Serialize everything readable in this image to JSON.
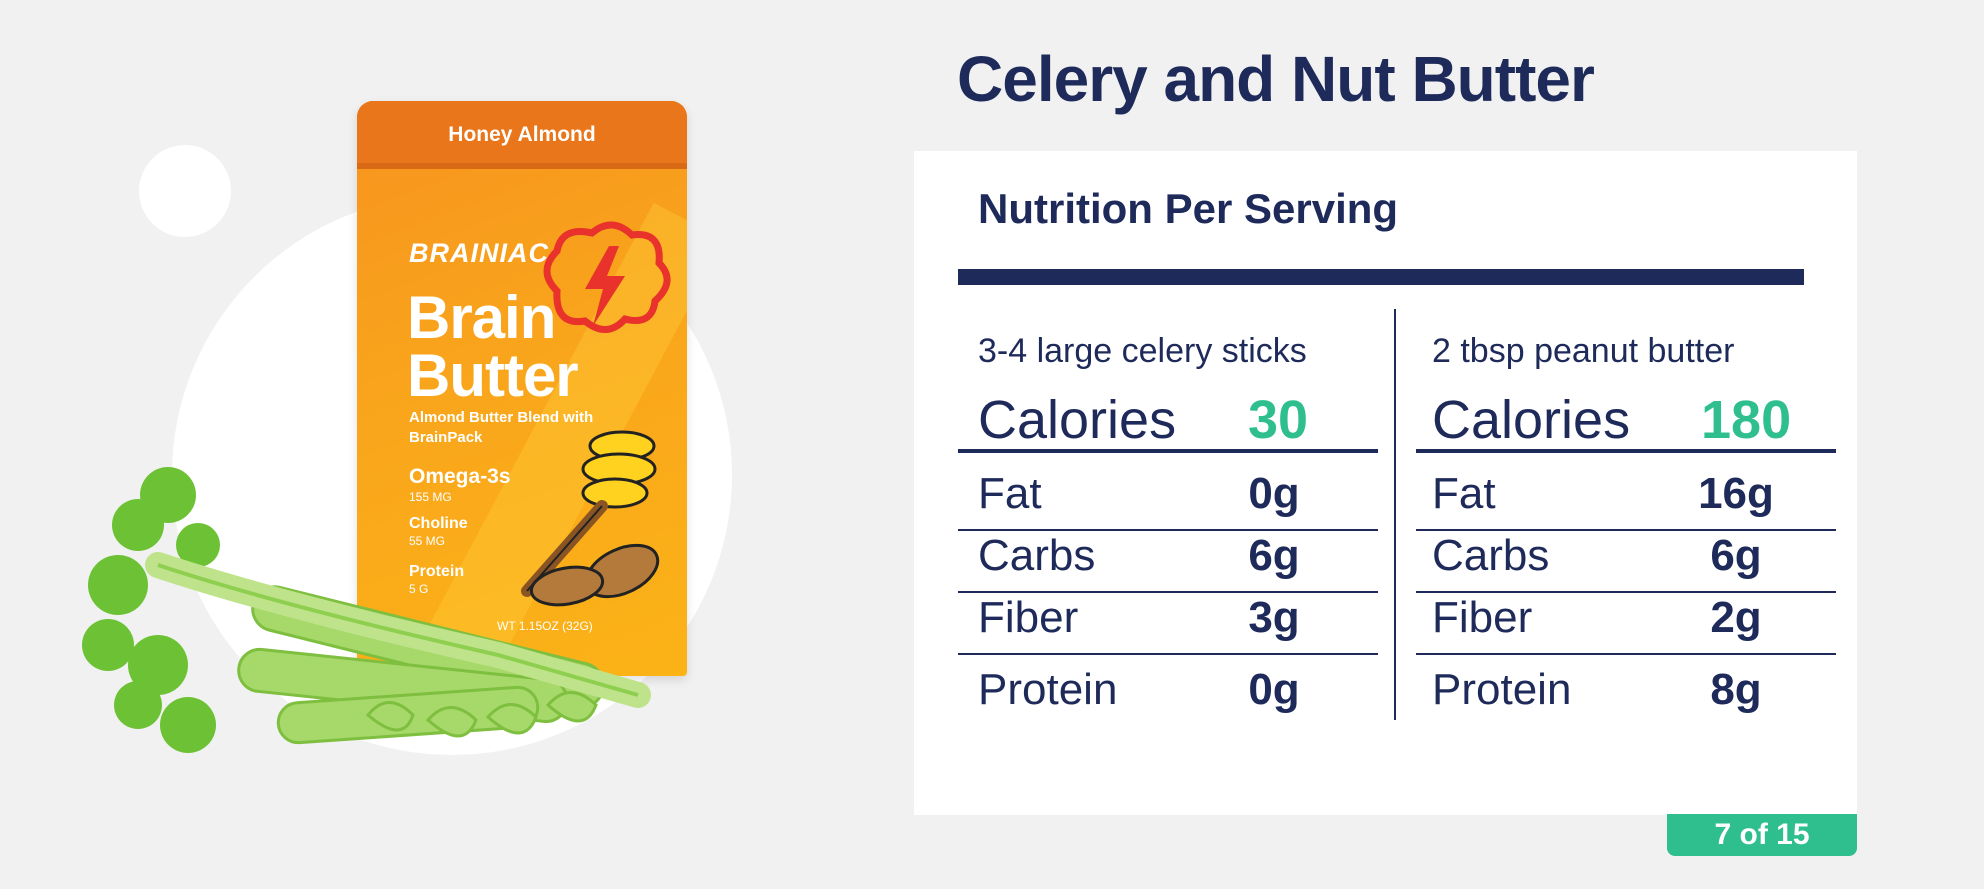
{
  "title": "Celery and Nut Butter",
  "product": {
    "flavor": "Honey Almond",
    "brand": "BRAINIAC",
    "name_line1": "Brain",
    "name_line2": "Butter",
    "subtitle": "Almond Butter Blend with BrainPack",
    "stats": [
      {
        "name": "Omega-3s",
        "value": "155 MG"
      },
      {
        "name": "Choline",
        "value": "55 MG"
      },
      {
        "name": "Protein",
        "value": "5 G"
      }
    ],
    "net_weight": "WT 1.15OZ (32G)"
  },
  "nutrition": {
    "heading": "Nutrition Per Serving",
    "columns": [
      {
        "serving": "3-4 large celery sticks",
        "calories_label": "Calories",
        "calories": "30",
        "rows": [
          {
            "label": "Fat",
            "value": "0g"
          },
          {
            "label": "Carbs",
            "value": "6g"
          },
          {
            "label": "Fiber",
            "value": "3g"
          },
          {
            "label": "Protein",
            "value": "0g"
          }
        ]
      },
      {
        "serving": "2 tbsp peanut butter",
        "calories_label": "Calories",
        "calories": "180",
        "rows": [
          {
            "label": "Fat",
            "value": "16g"
          },
          {
            "label": "Carbs",
            "value": "6g"
          },
          {
            "label": "Fiber",
            "value": "2g"
          },
          {
            "label": "Protein",
            "value": "8g"
          }
        ]
      }
    ]
  },
  "pagination": {
    "label": "7 of 15"
  },
  "colors": {
    "navy": "#1e2a5a",
    "accent": "#2fbf8f",
    "orange": "#f7931e"
  },
  "icons": [
    "bolt-icon",
    "honey-dipper-icon",
    "almond-icon",
    "celery-icon"
  ]
}
